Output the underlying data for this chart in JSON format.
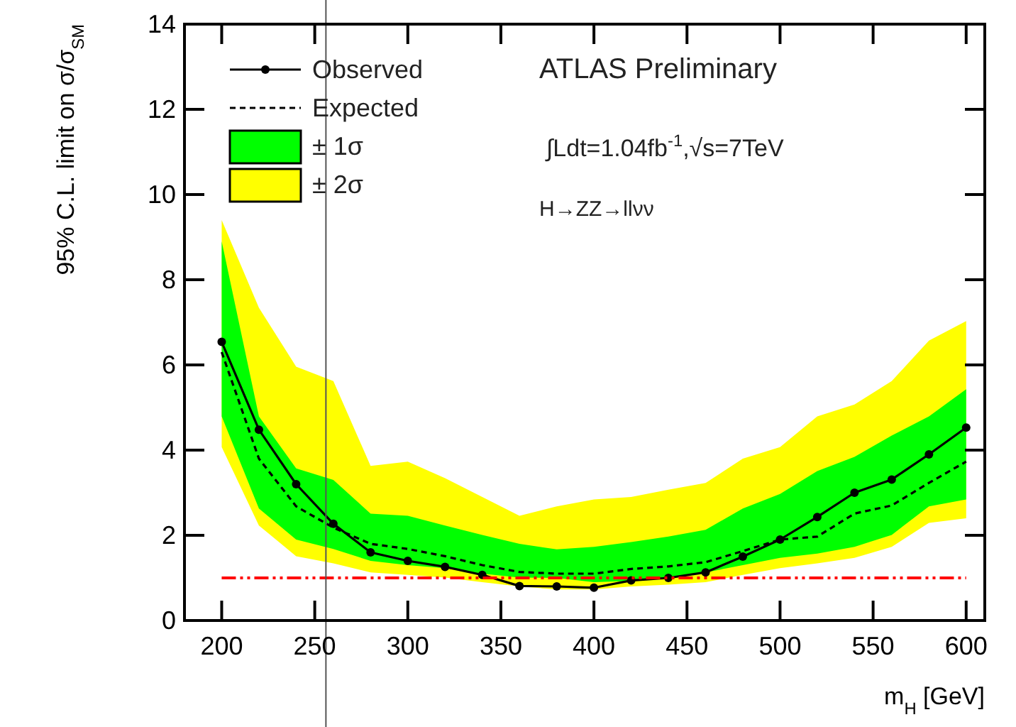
{
  "chart_data": {
    "type": "line",
    "xlabel": "m$_{H}$ [GeV]",
    "ylabel": "95% C.L. limit on σ/σ$_{SM}$",
    "x": [
      200,
      220,
      240,
      260,
      280,
      300,
      320,
      340,
      360,
      380,
      400,
      420,
      440,
      460,
      480,
      500,
      520,
      540,
      560,
      580,
      600
    ],
    "xlim": [
      180,
      610
    ],
    "xticks": [
      200,
      250,
      300,
      350,
      400,
      450,
      500,
      550,
      600
    ],
    "ylim": [
      0,
      14
    ],
    "yticks": [
      0,
      2,
      4,
      6,
      8,
      10,
      12,
      14
    ],
    "series": [
      {
        "name": "± 2σ",
        "color": "#ffff00",
        "values": [
          null,
          null,
          null,
          null,
          null,
          null,
          null,
          null,
          null,
          null,
          null,
          null,
          null,
          null,
          null,
          null,
          null,
          null,
          null,
          null,
          null
        ],
        "lower": [
          4.07,
          2.23,
          1.51,
          1.34,
          1.13,
          1.07,
          1.01,
          0.9,
          0.8,
          0.73,
          0.73,
          0.8,
          0.84,
          0.9,
          1.07,
          1.23,
          1.34,
          1.47,
          1.73,
          2.29,
          2.4
        ],
        "upper": [
          9.4,
          7.34,
          5.96,
          5.62,
          3.63,
          3.73,
          3.34,
          2.9,
          2.46,
          2.68,
          2.84,
          2.9,
          3.07,
          3.23,
          3.8,
          4.07,
          4.79,
          5.07,
          5.62,
          6.57,
          7.03
        ]
      },
      {
        "name": "± 1σ",
        "color": "#00ff00",
        "values": [
          null,
          null,
          null,
          null,
          null,
          null,
          null,
          null,
          null,
          null,
          null,
          null,
          null,
          null,
          null,
          null,
          null,
          null,
          null,
          null,
          null
        ],
        "lower": [
          4.79,
          2.63,
          1.9,
          1.68,
          1.4,
          1.3,
          1.23,
          1.1,
          1.01,
          1.0,
          0.9,
          0.93,
          1.01,
          1.13,
          1.3,
          1.47,
          1.57,
          1.73,
          2.01,
          2.68,
          2.84
        ],
        "upper": [
          8.9,
          4.79,
          3.57,
          3.3,
          2.51,
          2.46,
          2.23,
          2.01,
          1.8,
          1.67,
          1.73,
          1.84,
          1.97,
          2.13,
          2.63,
          2.97,
          3.51,
          3.84,
          4.34,
          4.79,
          5.43
        ]
      },
      {
        "name": "Expected",
        "color": "#000000",
        "line_style": "dashed",
        "marker": "none",
        "values": [
          6.3,
          3.8,
          2.68,
          2.18,
          1.8,
          1.68,
          1.51,
          1.3,
          1.14,
          1.1,
          1.1,
          1.21,
          1.27,
          1.37,
          1.63,
          1.9,
          1.97,
          2.51,
          2.7,
          3.23,
          3.73
        ]
      },
      {
        "name": "Observed",
        "color": "#000000",
        "line_style": "solid",
        "marker": "circle",
        "values": [
          6.54,
          4.48,
          3.2,
          2.27,
          1.6,
          1.4,
          1.26,
          1.07,
          0.81,
          0.8,
          0.77,
          0.94,
          1.0,
          1.13,
          1.5,
          1.9,
          2.43,
          3.0,
          3.31,
          3.9,
          4.53
        ]
      }
    ],
    "ref_lines": [
      {
        "axis": "y",
        "value": 1,
        "color": "#ff0000",
        "line_style": "dashed"
      },
      {
        "axis": "x",
        "value": 256,
        "color": "#555555",
        "line_style": "solid"
      }
    ],
    "legend": "top left",
    "grid": false,
    "annotations": [
      "ATLAS Preliminary",
      "∫Ldt=1.04fb$^{-1}$,√s=7TeV",
      "H→ZZ→llνν"
    ]
  }
}
